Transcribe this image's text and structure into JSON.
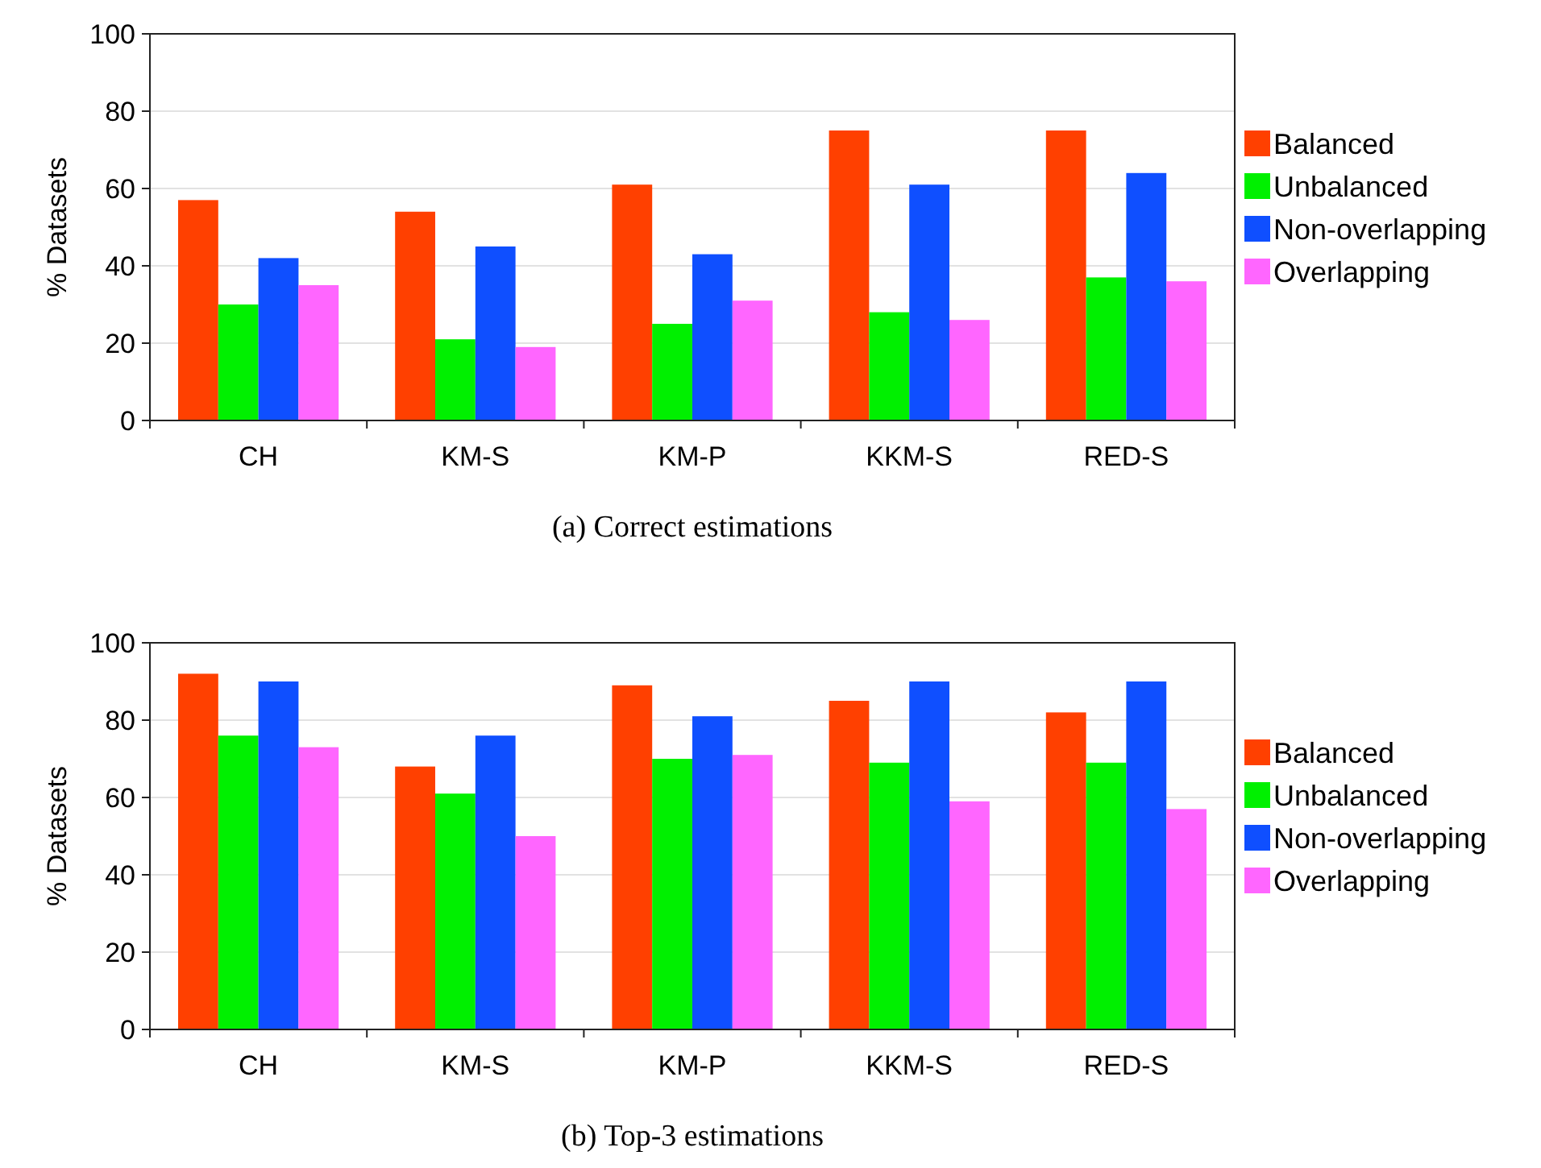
{
  "chart_data": [
    {
      "type": "bar",
      "categories": [
        "CH",
        "KM-S",
        "KM-P",
        "KKM-S",
        "RED-S"
      ],
      "ylabel": "% Datasets",
      "ylim": [
        0,
        100
      ],
      "yticks": [
        0,
        20,
        40,
        60,
        80,
        100
      ],
      "grid": "y",
      "legend": "right",
      "annotations": [
        "(a) Correct estimations"
      ],
      "series": [
        {
          "name": "Balanced",
          "color": "#ff4000",
          "values": [
            57,
            54,
            61,
            75,
            75
          ]
        },
        {
          "name": "Unbalanced",
          "color": "#00f000",
          "values": [
            30,
            21,
            25,
            28,
            37
          ]
        },
        {
          "name": "Non-overlapping",
          "color": "#0f4fff",
          "values": [
            42,
            45,
            43,
            61,
            64
          ]
        },
        {
          "name": "Overlapping",
          "color": "#ff66ff",
          "values": [
            35,
            19,
            31,
            26,
            36
          ]
        }
      ]
    },
    {
      "type": "bar",
      "categories": [
        "CH",
        "KM-S",
        "KM-P",
        "KKM-S",
        "RED-S"
      ],
      "ylabel": "% Datasets",
      "ylim": [
        0,
        100
      ],
      "yticks": [
        0,
        20,
        40,
        60,
        80,
        100
      ],
      "grid": "y",
      "legend": "right",
      "annotations": [
        "(b) Top-3 estimations"
      ],
      "series": [
        {
          "name": "Balanced",
          "color": "#ff4000",
          "values": [
            92,
            68,
            89,
            85,
            82
          ]
        },
        {
          "name": "Unbalanced",
          "color": "#00f000",
          "values": [
            76,
            61,
            70,
            69,
            69
          ]
        },
        {
          "name": "Non-overlapping",
          "color": "#0f4fff",
          "values": [
            90,
            76,
            81,
            90,
            90
          ]
        },
        {
          "name": "Overlapping",
          "color": "#ff66ff",
          "values": [
            73,
            50,
            71,
            59,
            57
          ]
        }
      ]
    }
  ]
}
